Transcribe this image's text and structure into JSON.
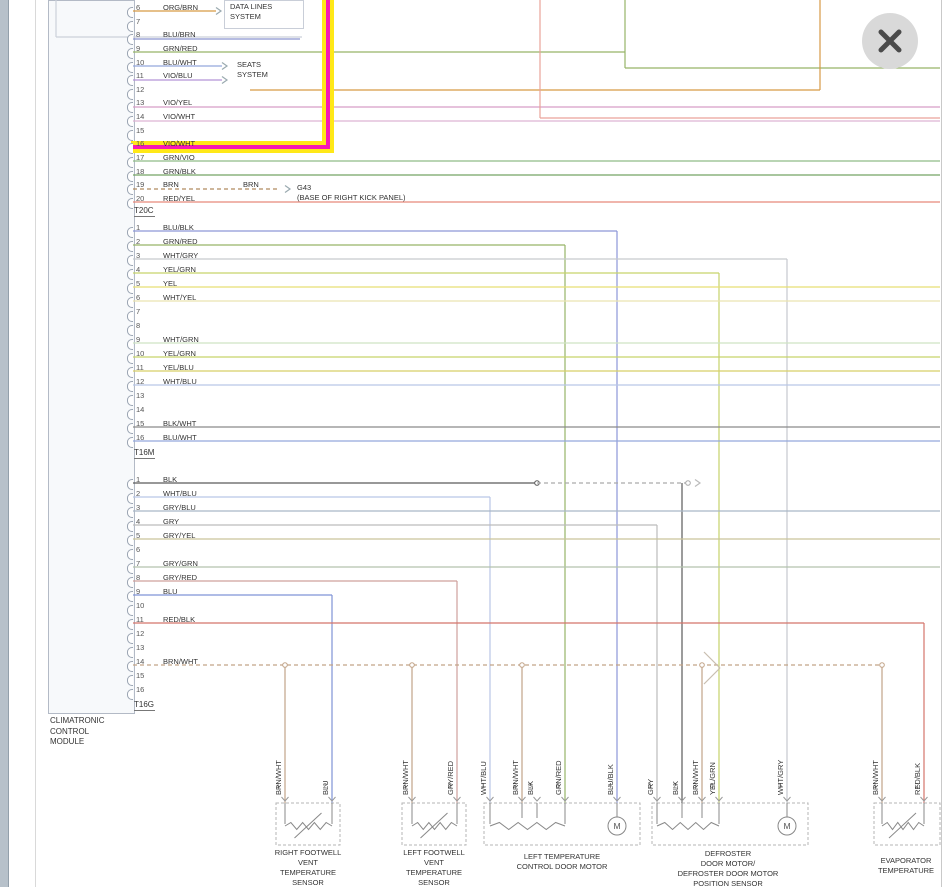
{
  "icons": {
    "close": "x-mark"
  },
  "motor_symbol": "M",
  "highlight": {
    "trace_color": "#f618b6",
    "outline_color": "#ffe818"
  },
  "wire_colors": {
    "ORG/BRN": "#d79a45",
    "BLU/BRN": "#8a94cf",
    "GRN/RED": "#96b468",
    "BLU/WHT": "#93a7dc",
    "VIO/BLU": "#b393d6",
    "VIO/YEL": "#d79ec6",
    "VIO/WHT": "#ddb3d3",
    "GRN/VIO": "#8fbc88",
    "GRN/BLK": "#74a464",
    "BRN": "#b08a5f",
    "RED/YEL": "#e8897b",
    "BLU/BLK": "#8d97d8",
    "WHT/GRY": "#c6c9ce",
    "YEL/GRN": "#c6d36a",
    "YEL": "#e6df74",
    "WHT/YEL": "#eae3b0",
    "WHT/GRN": "#cfe3c4",
    "YEL/BLU": "#d8cf68",
    "WHT/BLU": "#b9c6e6",
    "BLK/WHT": "#8a8a8a",
    "BLK": "#5a5a5a",
    "GRY/BLU": "#a9b6c6",
    "GRY": "#bcbcbc",
    "GRY/YEL": "#c9c49a",
    "GRY/GRN": "#b3c2ad",
    "GRY/RED": "#cfa09c",
    "BLU": "#7f93d6",
    "RED/BLK": "#d4756b",
    "BRN/WHT": "#c2a488"
  },
  "module": {
    "name": "CLIMATRONIC\nCONTROL\nMODULE",
    "sections": [
      {
        "connector": "T20C",
        "pins": [
          {
            "n": "6",
            "label": "ORG/BRN"
          },
          {
            "n": "7",
            "label": ""
          },
          {
            "n": "8",
            "label": "BLU/BRN"
          },
          {
            "n": "9",
            "label": "GRN/RED"
          },
          {
            "n": "10",
            "label": "BLU/WHT"
          },
          {
            "n": "11",
            "label": "VIO/BLU"
          },
          {
            "n": "12",
            "label": ""
          },
          {
            "n": "13",
            "label": "VIO/YEL"
          },
          {
            "n": "14",
            "label": "VIO/WHT"
          },
          {
            "n": "15",
            "label": ""
          },
          {
            "n": "16",
            "label": "VIO/WHT"
          },
          {
            "n": "17",
            "label": "GRN/VIO"
          },
          {
            "n": "18",
            "label": "GRN/BLK"
          },
          {
            "n": "19",
            "label": "BRN"
          },
          {
            "n": "20",
            "label": "RED/YEL"
          }
        ]
      },
      {
        "connector": "T16M",
        "pins": [
          {
            "n": "1",
            "label": "BLU/BLK"
          },
          {
            "n": "2",
            "label": "GRN/RED"
          },
          {
            "n": "3",
            "label": "WHT/GRY"
          },
          {
            "n": "4",
            "label": "YEL/GRN"
          },
          {
            "n": "5",
            "label": "YEL"
          },
          {
            "n": "6",
            "label": "WHT/YEL"
          },
          {
            "n": "7",
            "label": ""
          },
          {
            "n": "8",
            "label": ""
          },
          {
            "n": "9",
            "label": "WHT/GRN"
          },
          {
            "n": "10",
            "label": "YEL/GRN"
          },
          {
            "n": "11",
            "label": "YEL/BLU"
          },
          {
            "n": "12",
            "label": "WHT/BLU"
          },
          {
            "n": "13",
            "label": ""
          },
          {
            "n": "14",
            "label": ""
          },
          {
            "n": "15",
            "label": "BLK/WHT"
          },
          {
            "n": "16",
            "label": "BLU/WHT"
          }
        ]
      },
      {
        "connector": "T16G",
        "pins": [
          {
            "n": "1",
            "label": "BLK"
          },
          {
            "n": "2",
            "label": "WHT/BLU"
          },
          {
            "n": "3",
            "label": "GRY/BLU"
          },
          {
            "n": "4",
            "label": "GRY"
          },
          {
            "n": "5",
            "label": "GRY/YEL"
          },
          {
            "n": "6",
            "label": ""
          },
          {
            "n": "7",
            "label": "GRY/GRN"
          },
          {
            "n": "8",
            "label": "GRY/RED"
          },
          {
            "n": "9",
            "label": "BLU"
          },
          {
            "n": "10",
            "label": ""
          },
          {
            "n": "11",
            "label": "RED/BLK"
          },
          {
            "n": "12",
            "label": ""
          },
          {
            "n": "13",
            "label": ""
          },
          {
            "n": "14",
            "label": "BRN/WHT"
          },
          {
            "n": "15",
            "label": ""
          },
          {
            "n": "16",
            "label": ""
          }
        ]
      }
    ]
  },
  "callouts": {
    "data_lines_system": "DATA LINES\nSYSTEM",
    "seats_system": "SEATS\nSYSTEM",
    "inline_wire_label": "BRN",
    "ground_name": "G43",
    "ground_location": "(BASE OF RIGHT KICK PANEL)"
  },
  "components": [
    {
      "name": "RIGHT FOOTWELL\nVENT\nTEMPERATURE\nSENSOR",
      "wires": [
        {
          "pin": "1",
          "label": "BRN/WHT"
        },
        {
          "pin": "2",
          "label": "BLU"
        }
      ]
    },
    {
      "name": "LEFT FOOTWELL\nVENT\nTEMPERATURE\nSENSOR",
      "wires": [
        {
          "pin": "1",
          "label": "BRN/WHT"
        },
        {
          "pin": "2",
          "label": "GRY/RED"
        }
      ]
    },
    {
      "name": "LEFT TEMPERATURE\nCONTROL DOOR MOTOR",
      "wires": [
        {
          "pin": "1",
          "label": "WHT/BLU"
        },
        {
          "pin": "2",
          "label": "BRN/WHT"
        },
        {
          "pin": "3",
          "label": "BLK"
        },
        {
          "pin": "6",
          "label": "GRN/RED"
        },
        {
          "pin": "4",
          "label": "BLU/BLK"
        }
      ]
    },
    {
      "name": "DEFROSTER\nDOOR MOTOR/\nDEFROSTER DOOR MOTOR\nPOSITION SENSOR",
      "wires": [
        {
          "pin": "1",
          "label": "GRY"
        },
        {
          "pin": "2",
          "label": "BLK"
        },
        {
          "pin": "3",
          "label": "BRN/WHT"
        },
        {
          "pin": "6",
          "label": "YEL/GRN"
        },
        {
          "pin": "5",
          "label": "WHT/GRY"
        }
      ]
    },
    {
      "name": "EVAPORATOR\nTEMPERATURE",
      "wires": [
        {
          "pin": "1",
          "label": "BRN/WHT"
        },
        {
          "pin": "2",
          "label": "RED/BLK"
        }
      ]
    }
  ]
}
